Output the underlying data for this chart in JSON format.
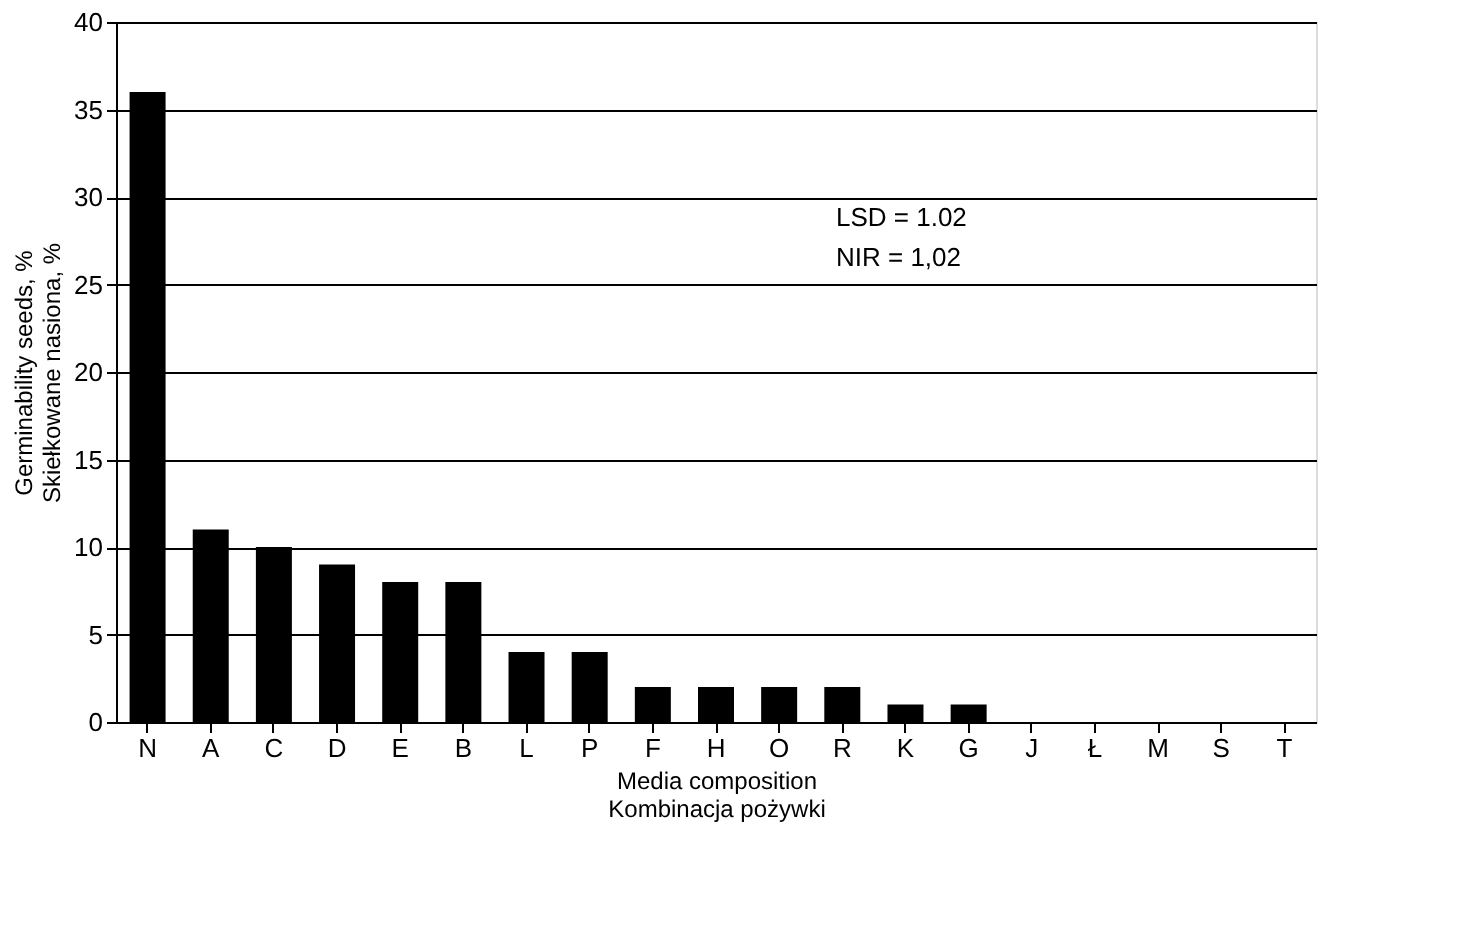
{
  "chart_data": {
    "type": "bar",
    "xlabel": "Media composition\nKombinacja pożywki",
    "ylabel": "Germinability seeds, %\nSkiełkowane nasiona, %",
    "categories": [
      "N",
      "A",
      "C",
      "D",
      "E",
      "B",
      "L",
      "P",
      "F",
      "H",
      "O",
      "R",
      "K",
      "G",
      "J",
      "Ł",
      "M",
      "S",
      "T"
    ],
    "values": [
      36,
      11,
      10,
      9,
      8,
      8,
      4,
      4,
      2,
      2,
      2,
      2,
      1,
      1,
      0,
      0,
      0,
      0,
      0
    ],
    "color": "#000000",
    "ylim": [
      0,
      40
    ],
    "yticks": [
      0,
      5,
      10,
      15,
      20,
      25,
      30,
      35,
      40
    ],
    "grid": "y",
    "annotations": [
      "LSD = 1.02",
      "NIR = 1,02"
    ]
  }
}
